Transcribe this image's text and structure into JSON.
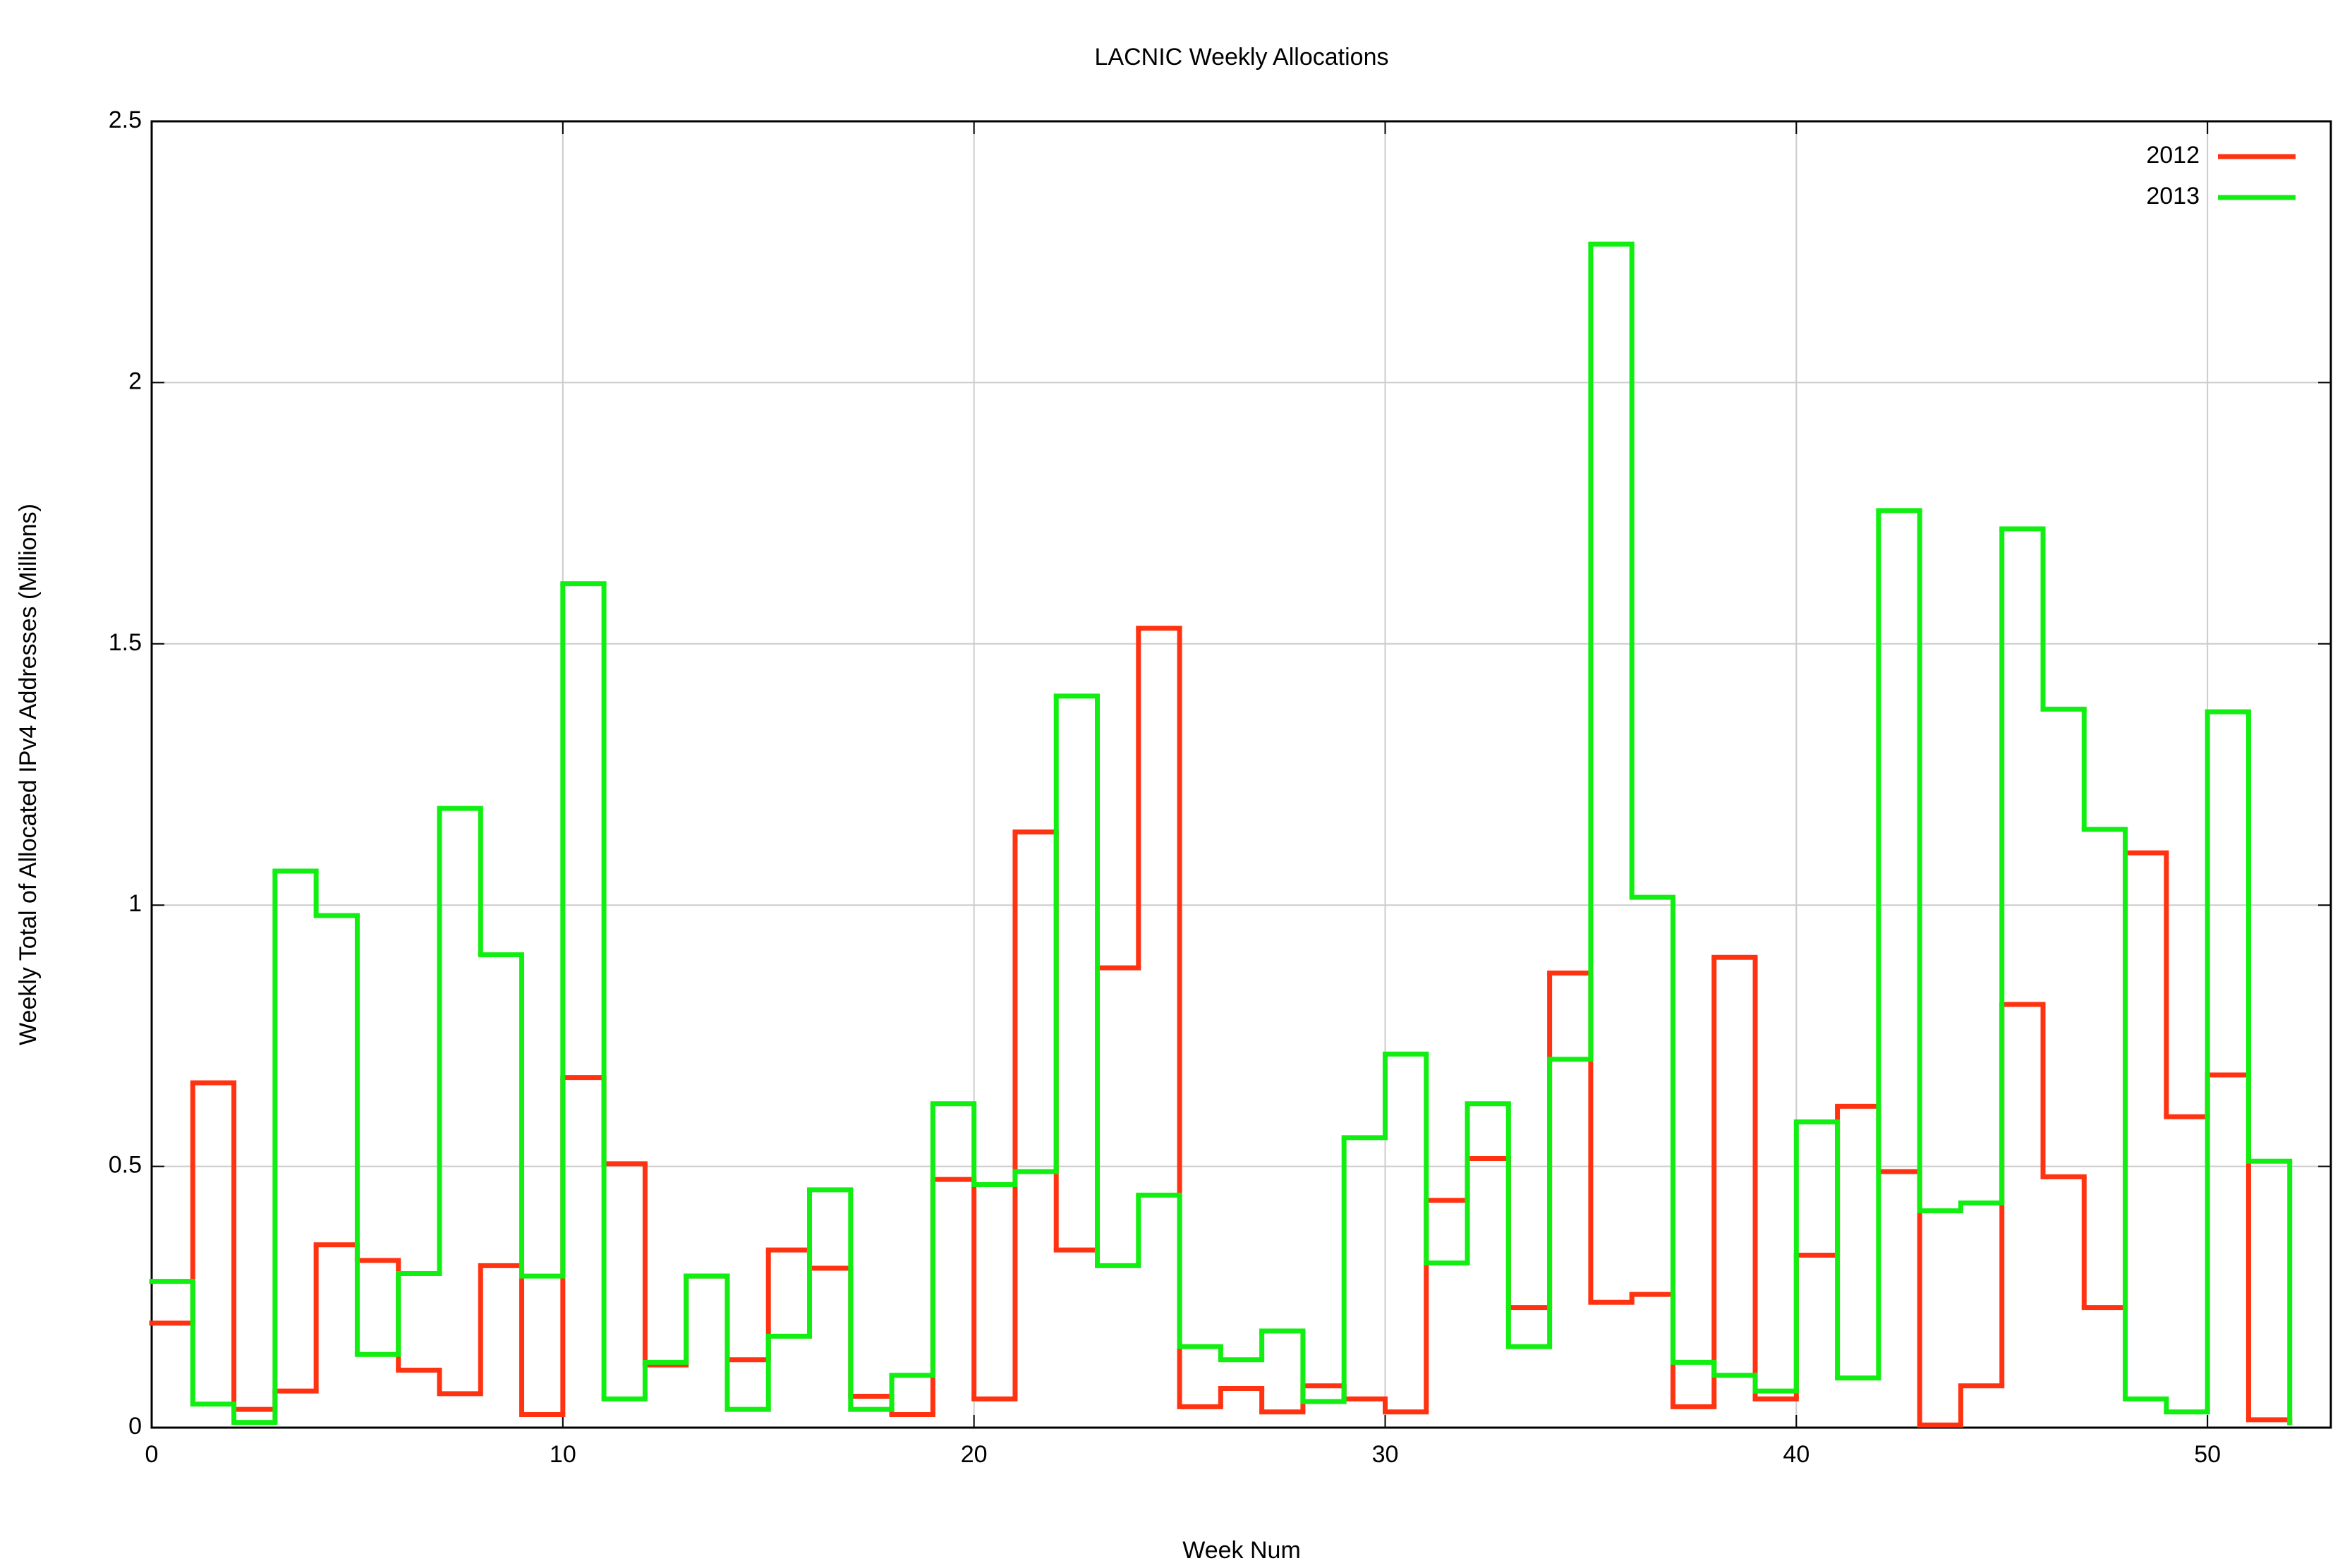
{
  "chart_data": {
    "type": "step",
    "title": "LACNIC Weekly Allocations",
    "x_label": "Week Num",
    "y_label": "Weekly Total of Allocated IPv4 Addresses (Millions)",
    "x": [
      0,
      1,
      2,
      3,
      4,
      5,
      6,
      7,
      8,
      9,
      10,
      11,
      12,
      13,
      14,
      15,
      16,
      17,
      18,
      19,
      20,
      21,
      22,
      23,
      24,
      25,
      26,
      27,
      28,
      29,
      30,
      31,
      32,
      33,
      34,
      35,
      36,
      37,
      38,
      39,
      40,
      41,
      42,
      43,
      44,
      45,
      46,
      47,
      48,
      49,
      50,
      51,
      52
    ],
    "series": [
      {
        "name": "2012",
        "color": "#ff3311",
        "values": [
          0.2,
          0.66,
          0.035,
          0.07,
          0.35,
          0.32,
          0.11,
          0.065,
          0.31,
          0.025,
          0.67,
          0.505,
          0.12,
          0.29,
          0.13,
          0.34,
          0.305,
          0.06,
          0.025,
          0.475,
          0.055,
          1.14,
          0.34,
          0.88,
          1.53,
          0.04,
          0.075,
          0.03,
          0.08,
          0.055,
          0.03,
          0.435,
          0.515,
          0.23,
          0.87,
          0.24,
          0.255,
          0.04,
          0.9,
          0.055,
          0.33,
          0.615,
          0.49,
          0.005,
          0.08,
          0.81,
          0.48,
          0.23,
          1.1,
          0.595,
          0.675,
          0.015,
          0.005
        ]
      },
      {
        "name": "2013",
        "color": "#11ee11",
        "values": [
          0.28,
          0.045,
          0.01,
          1.065,
          0.98,
          0.14,
          0.295,
          1.185,
          0.905,
          0.29,
          1.615,
          0.055,
          0.125,
          0.29,
          0.035,
          0.175,
          0.455,
          0.035,
          0.1,
          0.62,
          0.465,
          0.49,
          1.4,
          0.31,
          0.445,
          0.155,
          0.13,
          0.185,
          0.05,
          0.555,
          0.715,
          0.315,
          0.62,
          0.155,
          0.705,
          2.265,
          1.015,
          0.125,
          0.1,
          0.07,
          0.585,
          0.095,
          1.755,
          0.415,
          0.43,
          1.72,
          1.375,
          1.145,
          0.055,
          0.03,
          1.37,
          0.51,
          0.005
        ]
      }
    ],
    "xlim": [
      0,
      53
    ],
    "xticks": [
      0,
      10,
      20,
      30,
      40,
      50
    ],
    "ylim": [
      0,
      2.5
    ],
    "yticks": [
      0,
      0.5,
      1,
      1.5,
      2,
      2.5
    ],
    "grid": true,
    "legend": "top-right"
  }
}
